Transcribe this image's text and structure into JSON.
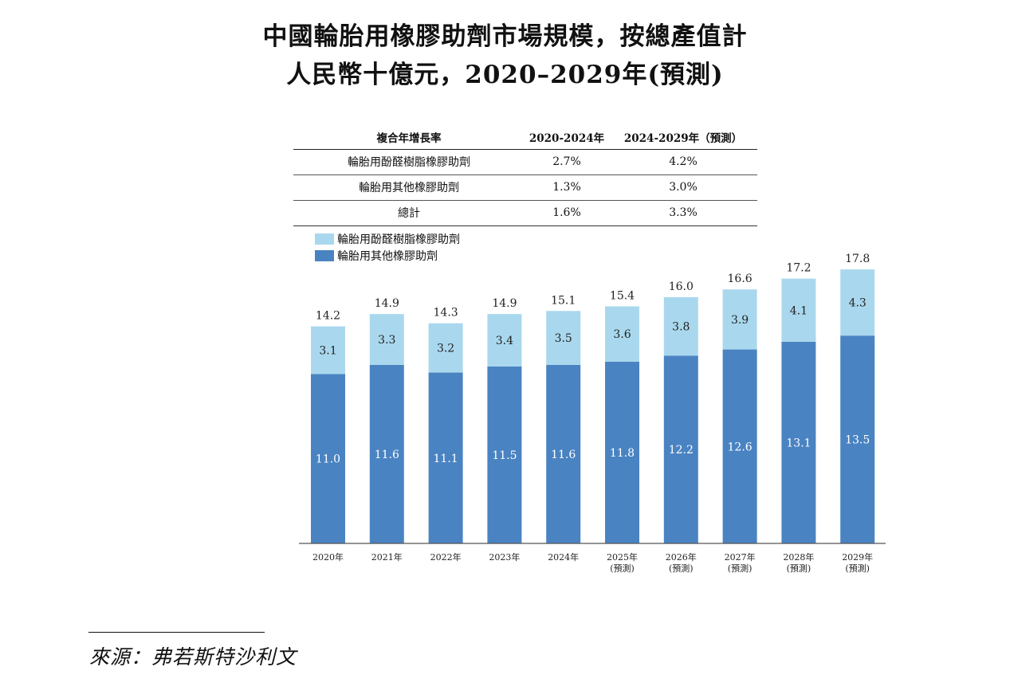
{
  "title_line1": "中國輪胎用橡膠助劑市場規模，按總產值計",
  "title_line2": "人民幣十億元，2020–2029年(預測)",
  "cagr_table": {
    "headers": [
      "複合年增長率",
      "2020-2024年",
      "2024-2029年（預測）"
    ],
    "rows": [
      [
        "輪胎用酚醛樹脂橡膠助劑",
        "2.7%",
        "4.2%"
      ],
      [
        "輪胎用其他橡膠助劑",
        "1.3%",
        "3.0%"
      ],
      [
        "總計",
        "1.6%",
        "3.3%"
      ]
    ]
  },
  "colors": {
    "light": "#a9d8ee",
    "dark": "#4a83c2",
    "axis": "#555555"
  },
  "chart_data": {
    "type": "bar",
    "stacked": true,
    "categories": [
      "2020年",
      "2021年",
      "2022年",
      "2023年",
      "2024年",
      "2025年",
      "2026年",
      "2027年",
      "2028年",
      "2029年"
    ],
    "category_notes": [
      "",
      "",
      "",
      "",
      "",
      "(預測)",
      "(預測)",
      "(預測)",
      "(預測)",
      "(預測)"
    ],
    "series": [
      {
        "name": "輪胎用其他橡膠助劑",
        "values": [
          11.0,
          11.6,
          11.1,
          11.5,
          11.6,
          11.8,
          12.2,
          12.6,
          13.1,
          13.5
        ]
      },
      {
        "name": "輪胎用酚醛樹脂橡膠助劑",
        "values": [
          3.1,
          3.3,
          3.2,
          3.4,
          3.5,
          3.6,
          3.8,
          3.9,
          4.1,
          4.3
        ]
      }
    ],
    "totals": [
      14.2,
      14.9,
      14.3,
      14.9,
      15.1,
      15.4,
      16.0,
      16.6,
      17.2,
      17.8
    ],
    "legend": [
      "輪胎用酚醛樹脂橡膠助劑",
      "輪胎用其他橡膠助劑"
    ],
    "ylim": [
      0,
      17.8
    ]
  },
  "source": "來源：弗若斯特沙利文"
}
